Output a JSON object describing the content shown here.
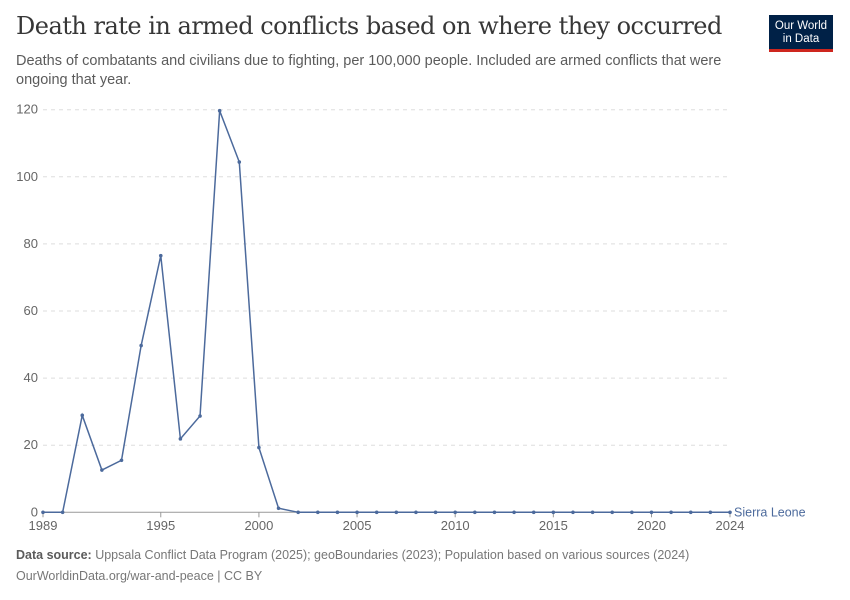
{
  "title": "Death rate in armed conflicts based on where they occurred",
  "subtitle": "Deaths of combatants and civilians due to fighting, per 100,000 people. Included are armed conflicts that were ongoing that year.",
  "logo": {
    "line1": "Our World",
    "line2": "in Data"
  },
  "footer": {
    "source_label": "Data source:",
    "source_text": " Uppsala Conflict Data Program (2025); geoBoundaries (2023); Population based on various sources (2024)",
    "url": "OurWorldinData.org/war-and-peace | CC BY"
  },
  "chart_data": {
    "type": "line",
    "xlim": [
      1989,
      2024
    ],
    "ylim": [
      0,
      120
    ],
    "grid": true,
    "yticks": [
      0,
      20,
      40,
      60,
      80,
      100,
      120
    ],
    "xticks": [
      1989,
      1995,
      2000,
      2005,
      2010,
      2015,
      2020,
      2024
    ],
    "series": [
      {
        "name": "Sierra Leone",
        "color": "#4c6a9c",
        "x": [
          1989,
          1990,
          1991,
          1992,
          1993,
          1994,
          1995,
          1996,
          1997,
          1998,
          1999,
          2000,
          2001,
          2002,
          2003,
          2004,
          2005,
          2006,
          2007,
          2008,
          2009,
          2010,
          2011,
          2012,
          2013,
          2014,
          2015,
          2016,
          2017,
          2018,
          2019,
          2020,
          2021,
          2022,
          2023,
          2024
        ],
        "y": [
          0,
          0,
          28.9,
          12.6,
          15.5,
          49.7,
          76.5,
          21.9,
          28.7,
          119.7,
          104.4,
          19.3,
          1.2,
          0,
          0,
          0,
          0,
          0,
          0,
          0,
          0,
          0,
          0,
          0,
          0,
          0,
          0,
          0,
          0,
          0,
          0,
          0,
          0,
          0,
          0,
          0
        ]
      }
    ]
  }
}
